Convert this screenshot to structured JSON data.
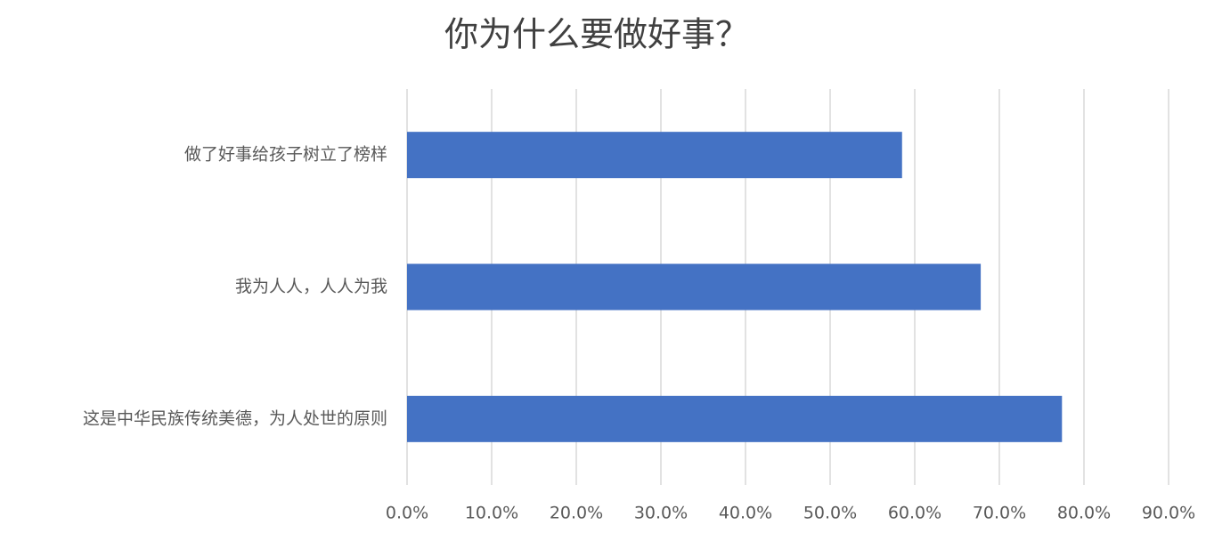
{
  "chart_data": {
    "type": "hbar",
    "title": "你为什么要做好事？",
    "categories": [
      "做了好事给孩子树立了榜样",
      "我为人人，人人为我",
      "这是中华民族传统美德，为人处世的原则"
    ],
    "values": [
      58.5,
      67.8,
      77.4
    ],
    "color": "#4472c4",
    "xlim": [
      0,
      90
    ],
    "xticks": [
      {
        "value": 0,
        "label": "0.0%"
      },
      {
        "value": 10,
        "label": "10.0%"
      },
      {
        "value": 20,
        "label": "20.0%"
      },
      {
        "value": 30,
        "label": "30.0%"
      },
      {
        "value": 40,
        "label": "40.0%"
      },
      {
        "value": 50,
        "label": "50.0%"
      },
      {
        "value": 60,
        "label": "60.0%"
      },
      {
        "value": 70,
        "label": "70.0%"
      },
      {
        "value": 80,
        "label": "80.0%"
      },
      {
        "value": 90,
        "label": "90.0%"
      }
    ],
    "grid": true
  }
}
